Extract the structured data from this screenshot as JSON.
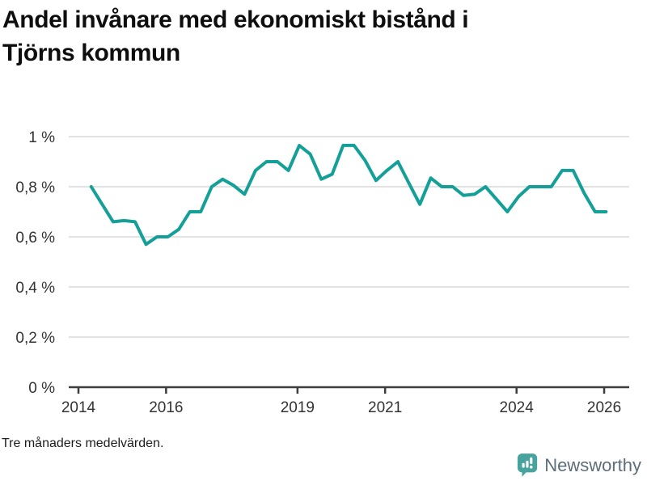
{
  "title": "Andel invånare med ekonomiskt bistånd i Tjörns kommun",
  "title_lines": [
    "Andel invånare med ekonomiskt bistånd i",
    "Tjörns kommun"
  ],
  "footer": {
    "note": "Tre månaders medelvärden."
  },
  "brand": {
    "name": "Newsworthy",
    "icon": "bar-chart-speech-bubble-icon",
    "icon_color": "#47a39d",
    "text_color": "#5d6d7a"
  },
  "colors": {
    "line": "#14a098",
    "grid": "#e2e2e2",
    "axis": "#3d3d3d",
    "tick_text": "#333333",
    "title_text": "#0e0e0e",
    "background": "#ffffff"
  },
  "chart_data": {
    "type": "line",
    "title": "Andel invånare med ekonomiskt bistånd i Tjörns kommun",
    "note": "Tre månaders medelvärden.",
    "unit": "%",
    "decimal_separator": ",",
    "grid": "horizontal",
    "legend": "none",
    "xlabel": "",
    "ylabel": "",
    "xlim": [
      2013.78,
      2026.57
    ],
    "ylim": [
      0,
      1.05
    ],
    "x_ticks": [
      {
        "label": "2014",
        "year": 2014
      },
      {
        "label": "2016",
        "year": 2016
      },
      {
        "label": "2019",
        "year": 2019
      },
      {
        "label": "2021",
        "year": 2021
      },
      {
        "label": "2024",
        "year": 2024
      },
      {
        "label": "2026",
        "year": 2026
      }
    ],
    "y_ticks": [
      {
        "label": "0 %",
        "value": 0
      },
      {
        "label": "0,2 %",
        "value": 0.2
      },
      {
        "label": "0,4 %",
        "value": 0.4
      },
      {
        "label": "0,6 %",
        "value": 0.6
      },
      {
        "label": "0,8 %",
        "value": 0.8
      },
      {
        "label": "1 %",
        "value": 1
      }
    ],
    "series": [
      {
        "name": "Andel invånare med ekonomiskt bistånd, Tjörns kommun",
        "color": "#14a098",
        "points": [
          [
            "2014-04",
            0.8
          ],
          [
            "2014-07",
            0.73
          ],
          [
            "2014-10",
            0.66
          ],
          [
            "2015-01",
            0.665
          ],
          [
            "2015-04",
            0.66
          ],
          [
            "2015-07",
            0.57
          ],
          [
            "2015-10",
            0.6
          ],
          [
            "2016-01",
            0.6
          ],
          [
            "2016-04",
            0.63
          ],
          [
            "2016-07",
            0.7
          ],
          [
            "2016-10",
            0.7
          ],
          [
            "2017-01",
            0.8
          ],
          [
            "2017-04",
            0.83
          ],
          [
            "2017-07",
            0.805
          ],
          [
            "2017-10",
            0.77
          ],
          [
            "2018-01",
            0.865
          ],
          [
            "2018-04",
            0.9
          ],
          [
            "2018-07",
            0.9
          ],
          [
            "2018-10",
            0.865
          ],
          [
            "2019-01",
            0.965
          ],
          [
            "2019-04",
            0.93
          ],
          [
            "2019-07",
            0.83
          ],
          [
            "2019-10",
            0.85
          ],
          [
            "2020-01",
            0.965
          ],
          [
            "2020-04",
            0.965
          ],
          [
            "2020-07",
            0.905
          ],
          [
            "2020-10",
            0.825
          ],
          [
            "2021-01",
            0.865
          ],
          [
            "2021-04",
            0.9
          ],
          [
            "2021-07",
            0.815
          ],
          [
            "2021-10",
            0.73
          ],
          [
            "2022-01",
            0.835
          ],
          [
            "2022-04",
            0.8
          ],
          [
            "2022-07",
            0.8
          ],
          [
            "2022-10",
            0.765
          ],
          [
            "2023-01",
            0.77
          ],
          [
            "2023-04",
            0.8
          ],
          [
            "2023-07",
            0.75
          ],
          [
            "2023-10",
            0.7
          ],
          [
            "2024-01",
            0.76
          ],
          [
            "2024-04",
            0.8
          ],
          [
            "2024-07",
            0.8
          ],
          [
            "2024-10",
            0.8
          ],
          [
            "2025-01",
            0.865
          ],
          [
            "2025-04",
            0.865
          ],
          [
            "2025-07",
            0.775
          ],
          [
            "2025-10",
            0.7
          ],
          [
            "2026-01",
            0.7
          ]
        ]
      }
    ]
  }
}
